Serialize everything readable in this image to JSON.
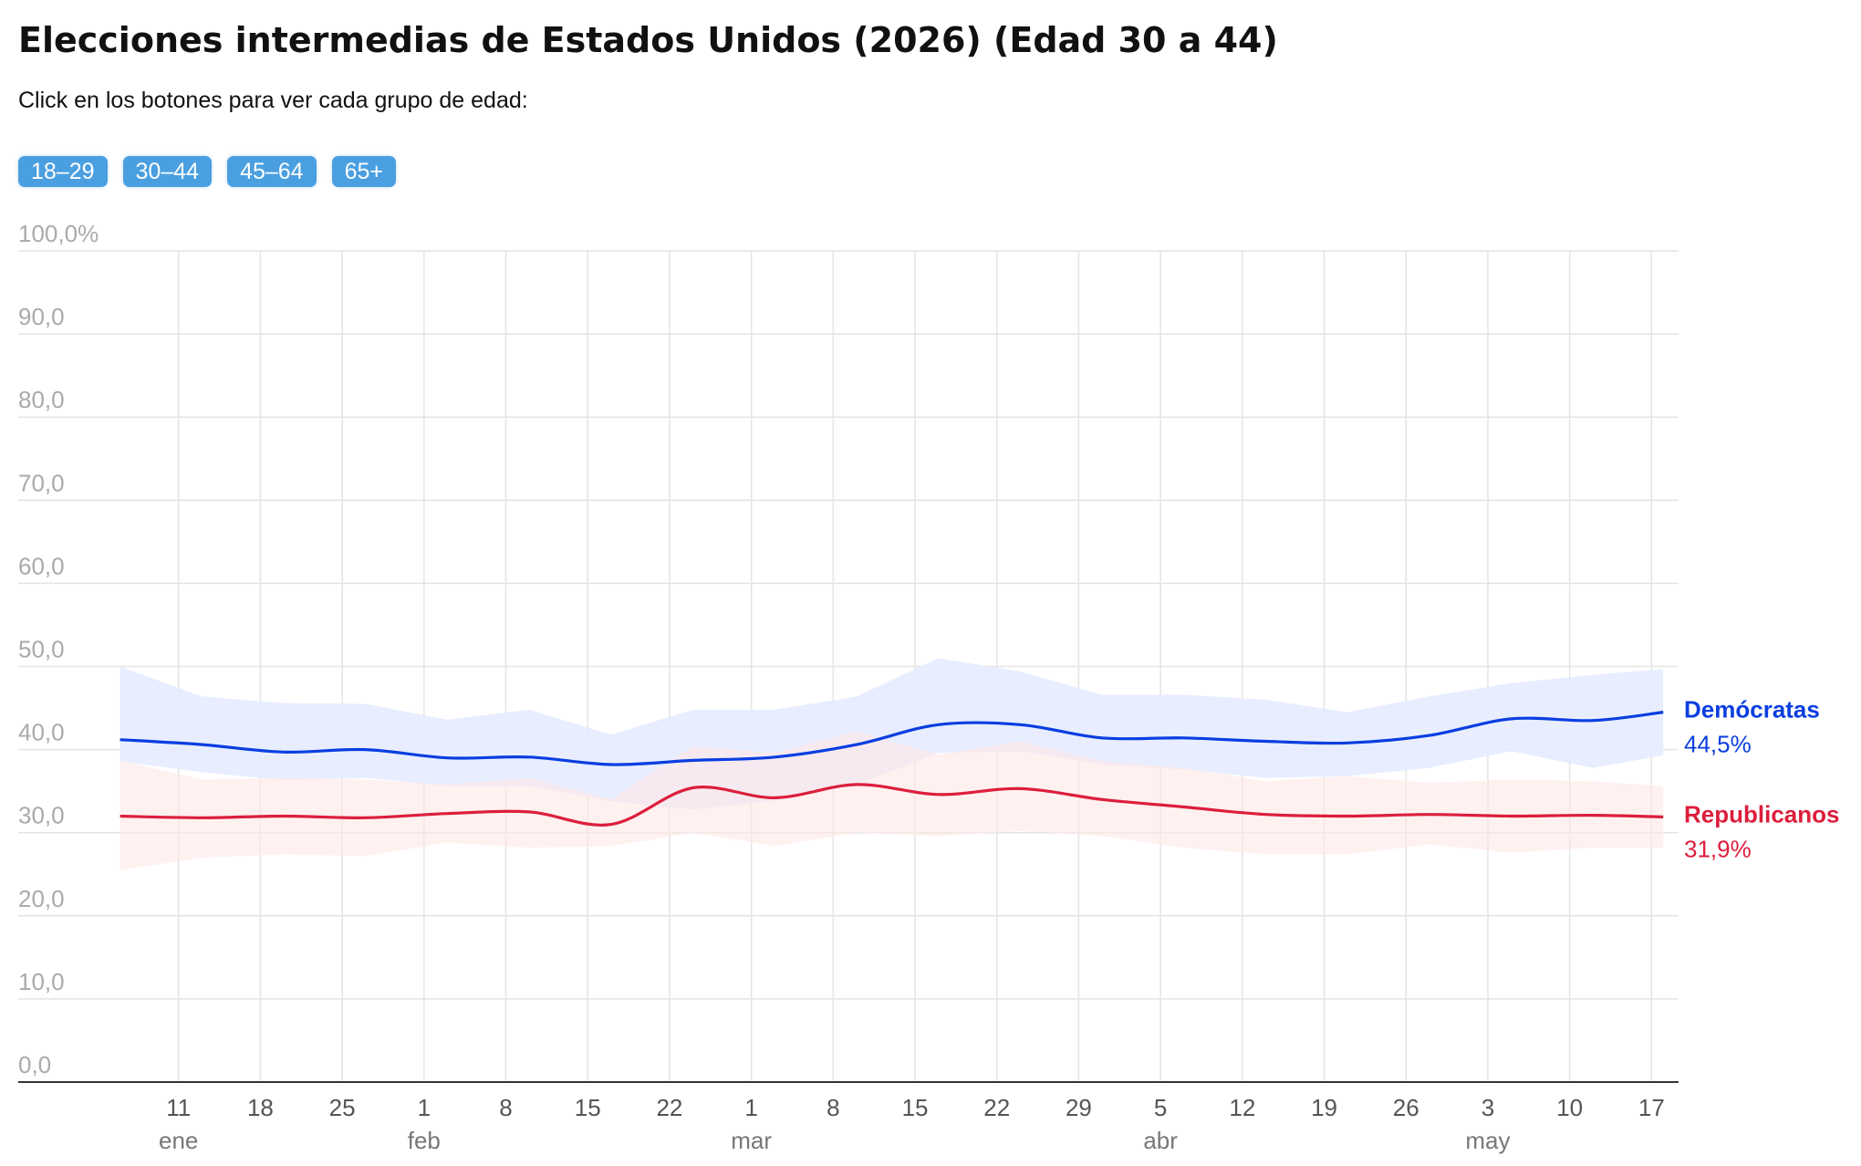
{
  "header": {
    "title": "Elecciones intermedias de Estados Unidos (2026) (Edad 30 a 44)",
    "subtitle": "Click en los botones para ver cada grupo de edad:"
  },
  "buttons": [
    {
      "label": "18–29"
    },
    {
      "label": "30–44"
    },
    {
      "label": "45–64"
    },
    {
      "label": "65+"
    }
  ],
  "chart_data": {
    "type": "line",
    "ylim": [
      0,
      100
    ],
    "y_ticks": [
      "100,0%",
      "90,0",
      "80,0",
      "70,0",
      "60,0",
      "50,0",
      "40,0",
      "30,0",
      "20,0",
      "10,0",
      "0,0"
    ],
    "y_tick_values": [
      100,
      90,
      80,
      70,
      60,
      50,
      40,
      30,
      20,
      10,
      0
    ],
    "x_range": [
      "2026-01-04",
      "2026-05-19"
    ],
    "x_ticks": [
      {
        "date": "2026-01-11",
        "label": "11",
        "month": "ene"
      },
      {
        "date": "2026-01-18",
        "label": "18"
      },
      {
        "date": "2026-01-25",
        "label": "25"
      },
      {
        "date": "2026-02-01",
        "label": "1",
        "month": "feb"
      },
      {
        "date": "2026-02-08",
        "label": "8"
      },
      {
        "date": "2026-02-15",
        "label": "15"
      },
      {
        "date": "2026-02-22",
        "label": "22"
      },
      {
        "date": "2026-03-01",
        "label": "1",
        "month": "mar"
      },
      {
        "date": "2026-03-08",
        "label": "8"
      },
      {
        "date": "2026-03-15",
        "label": "15"
      },
      {
        "date": "2026-03-22",
        "label": "22"
      },
      {
        "date": "2026-03-29",
        "label": "29"
      },
      {
        "date": "2026-04-05",
        "label": "5",
        "month": "abr"
      },
      {
        "date": "2026-04-12",
        "label": "12"
      },
      {
        "date": "2026-04-19",
        "label": "19"
      },
      {
        "date": "2026-04-26",
        "label": "26"
      },
      {
        "date": "2026-05-03",
        "label": "3",
        "month": "may"
      },
      {
        "date": "2026-05-10",
        "label": "10"
      },
      {
        "date": "2026-05-17",
        "label": "17"
      }
    ],
    "grid": true,
    "series": [
      {
        "name": "Demócratas",
        "value_label": "44,5%",
        "color": "#0a3ee0",
        "band_color": "#e6ecff",
        "points": [
          {
            "x": "2026-01-06",
            "y": 41.2,
            "lo": 38.6,
            "hi": 50.0
          },
          {
            "x": "2026-01-13",
            "y": 40.6,
            "lo": 37.3,
            "hi": 46.4
          },
          {
            "x": "2026-01-20",
            "y": 39.7,
            "lo": 36.3,
            "hi": 45.6
          },
          {
            "x": "2026-01-27",
            "y": 40.0,
            "lo": 36.6,
            "hi": 45.5
          },
          {
            "x": "2026-02-03",
            "y": 39.0,
            "lo": 35.6,
            "hi": 43.6
          },
          {
            "x": "2026-02-10",
            "y": 39.1,
            "lo": 35.6,
            "hi": 44.8
          },
          {
            "x": "2026-02-17",
            "y": 38.2,
            "lo": 33.8,
            "hi": 41.8
          },
          {
            "x": "2026-02-24",
            "y": 38.7,
            "lo": 32.8,
            "hi": 44.8
          },
          {
            "x": "2026-03-03",
            "y": 39.1,
            "lo": 33.8,
            "hi": 44.8
          },
          {
            "x": "2026-03-10",
            "y": 40.6,
            "lo": 35.8,
            "hi": 46.4
          },
          {
            "x": "2026-03-17",
            "y": 43.0,
            "lo": 39.6,
            "hi": 51.0
          },
          {
            "x": "2026-03-24",
            "y": 43.0,
            "lo": 39.8,
            "hi": 49.4
          },
          {
            "x": "2026-03-31",
            "y": 41.4,
            "lo": 38.2,
            "hi": 46.6
          },
          {
            "x": "2026-04-07",
            "y": 41.4,
            "lo": 37.6,
            "hi": 46.6
          },
          {
            "x": "2026-04-14",
            "y": 41.0,
            "lo": 36.6,
            "hi": 46.0
          },
          {
            "x": "2026-04-21",
            "y": 40.8,
            "lo": 36.8,
            "hi": 44.5
          },
          {
            "x": "2026-04-28",
            "y": 41.7,
            "lo": 37.8,
            "hi": 46.4
          },
          {
            "x": "2026-05-05",
            "y": 43.7,
            "lo": 39.8,
            "hi": 48.0
          },
          {
            "x": "2026-05-12",
            "y": 43.5,
            "lo": 37.8,
            "hi": 49.0
          },
          {
            "x": "2026-05-18",
            "y": 44.5,
            "lo": 39.3,
            "hi": 49.7
          }
        ]
      },
      {
        "name": "Republicanos",
        "value_label": "31,9%",
        "color": "#dc1e3c",
        "band_color": "#ffe8e6",
        "points": [
          {
            "x": "2026-01-06",
            "y": 32.0,
            "lo": 25.5,
            "hi": 38.7
          },
          {
            "x": "2026-01-13",
            "y": 31.8,
            "lo": 27.0,
            "hi": 36.4
          },
          {
            "x": "2026-01-20",
            "y": 32.0,
            "lo": 27.4,
            "hi": 36.6
          },
          {
            "x": "2026-01-27",
            "y": 31.8,
            "lo": 27.2,
            "hi": 36.4
          },
          {
            "x": "2026-02-03",
            "y": 32.3,
            "lo": 28.8,
            "hi": 35.8
          },
          {
            "x": "2026-02-10",
            "y": 32.5,
            "lo": 28.2,
            "hi": 36.6
          },
          {
            "x": "2026-02-17",
            "y": 31.0,
            "lo": 28.4,
            "hi": 34.0
          },
          {
            "x": "2026-02-24",
            "y": 35.4,
            "lo": 30.0,
            "hi": 40.4
          },
          {
            "x": "2026-03-03",
            "y": 34.2,
            "lo": 28.4,
            "hi": 39.6
          },
          {
            "x": "2026-03-10",
            "y": 35.8,
            "lo": 30.0,
            "hi": 42.2
          },
          {
            "x": "2026-03-17",
            "y": 34.6,
            "lo": 29.6,
            "hi": 39.4
          },
          {
            "x": "2026-03-24",
            "y": 35.3,
            "lo": 30.2,
            "hi": 41.0
          },
          {
            "x": "2026-03-31",
            "y": 34.0,
            "lo": 29.6,
            "hi": 38.6
          },
          {
            "x": "2026-04-07",
            "y": 33.1,
            "lo": 28.2,
            "hi": 37.8
          },
          {
            "x": "2026-04-14",
            "y": 32.2,
            "lo": 27.4,
            "hi": 36.2
          },
          {
            "x": "2026-04-21",
            "y": 32.0,
            "lo": 27.4,
            "hi": 36.8
          },
          {
            "x": "2026-04-28",
            "y": 32.2,
            "lo": 28.6,
            "hi": 36.0
          },
          {
            "x": "2026-05-05",
            "y": 32.0,
            "lo": 27.6,
            "hi": 36.4
          },
          {
            "x": "2026-05-12",
            "y": 32.1,
            "lo": 28.2,
            "hi": 36.2
          },
          {
            "x": "2026-05-18",
            "y": 31.9,
            "lo": 28.2,
            "hi": 35.6
          }
        ]
      }
    ]
  }
}
